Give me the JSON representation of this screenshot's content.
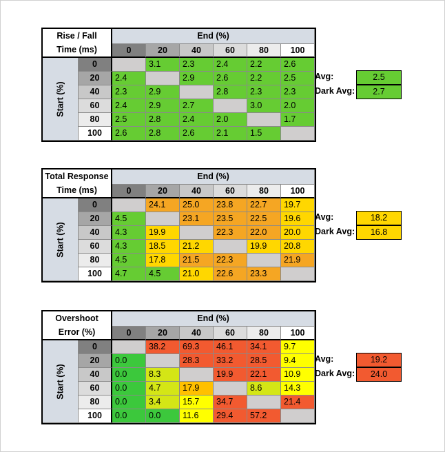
{
  "chart_data": [
    {
      "type": "table",
      "title_lines": [
        "Rise / Fall",
        "Time (ms)"
      ],
      "column_header": "End (%)",
      "row_header": "Start (%)",
      "levels": [
        "0",
        "20",
        "40",
        "60",
        "80",
        "100"
      ],
      "rows": [
        [
          null,
          "3.1",
          "2.3",
          "2.4",
          "2.2",
          "2.6"
        ],
        [
          "2.4",
          null,
          "2.9",
          "2.6",
          "2.2",
          "2.5"
        ],
        [
          "2.3",
          "2.9",
          null,
          "2.8",
          "2.3",
          "2.3"
        ],
        [
          "2.4",
          "2.9",
          "2.7",
          null,
          "3.0",
          "2.0"
        ],
        [
          "2.5",
          "2.8",
          "2.4",
          "2.0",
          null,
          "1.7"
        ],
        [
          "2.6",
          "2.8",
          "2.6",
          "2.1",
          "1.5",
          null
        ]
      ],
      "avg_label": "Avg:",
      "avg": "2.5",
      "dark_avg_label": "Dark Avg:",
      "dark_avg": "2.7",
      "scale": "rise"
    },
    {
      "type": "table",
      "title_lines": [
        "Total Response",
        "Time (ms)"
      ],
      "column_header": "End (%)",
      "row_header": "Start (%)",
      "levels": [
        "0",
        "20",
        "40",
        "60",
        "80",
        "100"
      ],
      "rows": [
        [
          null,
          "24.1",
          "25.0",
          "23.8",
          "22.7",
          "19.7"
        ],
        [
          "4.5",
          null,
          "23.1",
          "23.5",
          "22.5",
          "19.6"
        ],
        [
          "4.3",
          "19.9",
          null,
          "22.3",
          "22.0",
          "20.0"
        ],
        [
          "4.3",
          "18.5",
          "21.2",
          null,
          "19.9",
          "20.8"
        ],
        [
          "4.5",
          "17.8",
          "21.5",
          "22.3",
          null,
          "21.9"
        ],
        [
          "4.7",
          "4.5",
          "21.0",
          "22.6",
          "23.3",
          null
        ]
      ],
      "avg_label": "Avg:",
      "avg": "18.2",
      "dark_avg_label": "Dark Avg:",
      "dark_avg": "16.8",
      "scale": "total"
    },
    {
      "type": "table",
      "title_lines": [
        "Overshoot",
        "Error (%)"
      ],
      "column_header": "End (%)",
      "row_header": "Start (%)",
      "levels": [
        "0",
        "20",
        "40",
        "60",
        "80",
        "100"
      ],
      "rows": [
        [
          null,
          "38.2",
          "69.3",
          "46.1",
          "34.1",
          "9.7"
        ],
        [
          "0.0",
          null,
          "28.3",
          "33.2",
          "28.5",
          "9.4"
        ],
        [
          "0.0",
          "8.3",
          null,
          "19.9",
          "22.1",
          "10.9"
        ],
        [
          "0.0",
          "4.7",
          "17.9",
          null,
          "8.6",
          "14.3"
        ],
        [
          "0.0",
          "3.4",
          "15.7",
          "34.7",
          null,
          "21.4"
        ],
        [
          "0.0",
          "0.0",
          "11.6",
          "29.4",
          "57.2",
          null
        ]
      ],
      "avg_label": "Avg:",
      "avg": "19.2",
      "dark_avg_label": "Dark Avg:",
      "dark_avg": "24.0",
      "scale": "overshoot"
    }
  ],
  "colors": {
    "header_blue": "#d6dce4",
    "diagonal_gray": "#d0cece",
    "green": "#66cc33",
    "light_green": "#92d050",
    "yellow": "#ffd700",
    "orange": "#f5a623",
    "amber": "#ffc000",
    "red_orange": "#f26b3a",
    "bright_yellow": "#ffff00",
    "lime": "#d4e616",
    "overshoot_green": "#3cc83c",
    "col_head_shades": [
      "#808080",
      "#a6a6a6",
      "#c8c8c8",
      "#dcdcdc",
      "#ececec",
      "#ffffff"
    ]
  }
}
